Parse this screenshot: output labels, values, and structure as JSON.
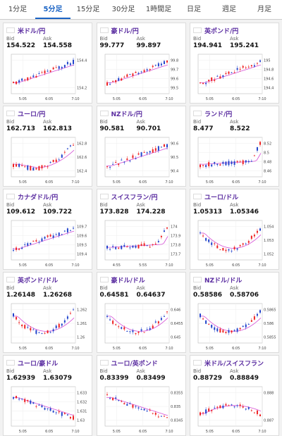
{
  "tabs": [
    "1分足",
    "5分足",
    "15分足",
    "30分足",
    "1時間足",
    "日足",
    "週足",
    "月足"
  ],
  "active_tab": 1,
  "labels": {
    "bid": "Bid",
    "ask": "Ask"
  },
  "cards": [
    {
      "pair": "米ドル/円",
      "flag": "us-flag-icon",
      "bid": "154.522",
      "ask": "154.558",
      "yticks": [
        "154.4",
        "154.2"
      ],
      "xticks": [
        "5:05",
        "6:05",
        "7:10"
      ],
      "trend": "up"
    },
    {
      "pair": "豪ドル/円",
      "flag": "au-flag-icon",
      "bid": "99.777",
      "ask": "99.897",
      "yticks": [
        "99.8",
        "99.7",
        "99.6",
        "99.5"
      ],
      "xticks": [
        "5:05",
        "6:05",
        "7:10"
      ],
      "trend": "up"
    },
    {
      "pair": "英ポンド/円",
      "flag": "uk-flag-icon",
      "bid": "194.941",
      "ask": "195.241",
      "yticks": [
        "195",
        "194.8",
        "194.6",
        "194.4"
      ],
      "xticks": [
        "5:05",
        "6:05",
        "7:10"
      ],
      "trend": "up"
    },
    {
      "pair": "ユーロ/円",
      "flag": "eu-flag-icon",
      "bid": "162.713",
      "ask": "162.813",
      "yticks": [
        "162.8",
        "162.6",
        "162.4"
      ],
      "xticks": [
        "5:05",
        "6:05",
        "7:10"
      ],
      "trend": "vup"
    },
    {
      "pair": "NZドル/円",
      "flag": "nz-flag-icon",
      "bid": "90.581",
      "ask": "90.701",
      "yticks": [
        "90.6",
        "90.5",
        "90.4"
      ],
      "xticks": [
        "5:05",
        "6:05",
        "7:10"
      ],
      "trend": "up"
    },
    {
      "pair": "ランド/円",
      "flag": "za-flag-icon",
      "bid": "8.477",
      "ask": "8.522",
      "yticks": [
        "8.52",
        "8.5",
        "8.48",
        "8.46"
      ],
      "xticks": [
        "5:05",
        "6:05",
        "7:10"
      ],
      "trend": "flatup"
    },
    {
      "pair": "カナダドル/円",
      "flag": "ca-flag-icon",
      "bid": "109.612",
      "ask": "109.722",
      "yticks": [
        "109.7",
        "109.6",
        "109.5",
        "109.4"
      ],
      "xticks": [
        "5:05",
        "6:05",
        "7:10"
      ],
      "trend": "up"
    },
    {
      "pair": "スイスフラン/円",
      "flag": "ch-flag-icon",
      "bid": "173.828",
      "ask": "174.228",
      "yticks": [
        "174",
        "173.9",
        "173.8",
        "173.7"
      ],
      "xticks": [
        "4:55",
        "5:55",
        "7:10"
      ],
      "trend": "flatup"
    },
    {
      "pair": "ユーロ/ドル",
      "flag": "eu-flag-icon",
      "bid": "1.05313",
      "ask": "1.05346",
      "yticks": [
        "1.054",
        "1.053",
        "1.052"
      ],
      "xticks": [
        "5:05",
        "6:05",
        "7:10"
      ],
      "trend": "dip"
    },
    {
      "pair": "英ポンド/ドル",
      "flag": "uk-flag-icon",
      "bid": "1.26148",
      "ask": "1.26268",
      "yticks": [
        "1.262",
        "1.261",
        "1.26"
      ],
      "xticks": [
        "5:05",
        "6:05",
        "7:10"
      ],
      "trend": "dip"
    },
    {
      "pair": "豪ドル/ドル",
      "flag": "au-flag-icon",
      "bid": "0.64581",
      "ask": "0.64637",
      "yticks": [
        "0.646",
        "0.6455",
        "0.645"
      ],
      "xticks": [
        "5:05",
        "6:05",
        "7:10"
      ],
      "trend": "dip"
    },
    {
      "pair": "NZドル/ドル",
      "flag": "nz-flag-icon",
      "bid": "0.58586",
      "ask": "0.58706",
      "yticks": [
        "0.5865",
        "0.586",
        "0.5855"
      ],
      "xticks": [
        "5:05",
        "6:05",
        "7:10"
      ],
      "trend": "dip"
    },
    {
      "pair": "ユーロ/豪ドル",
      "flag": "eu-flag-icon",
      "bid": "1.62939",
      "ask": "1.63079",
      "yticks": [
        "1.633",
        "1.632",
        "1.631",
        "1.63"
      ],
      "xticks": [
        "5:05",
        "6:05",
        "7:10"
      ],
      "trend": "down"
    },
    {
      "pair": "ユーロ/英ポンド",
      "flag": "eu-flag-icon",
      "bid": "0.83399",
      "ask": "0.83499",
      "yticks": [
        "0.8355",
        "0.835",
        "0.8345"
      ],
      "xticks": [
        "5:05",
        "6:05",
        "7:10"
      ],
      "trend": "down"
    },
    {
      "pair": "米ドル/スイスフラン",
      "flag": "us-flag-icon",
      "bid": "0.88729",
      "ask": "0.88849",
      "yticks": [
        "0.888",
        "0.887"
      ],
      "xticks": [
        "5:05",
        "6:05",
        "7:10"
      ],
      "trend": "updown"
    }
  ]
}
